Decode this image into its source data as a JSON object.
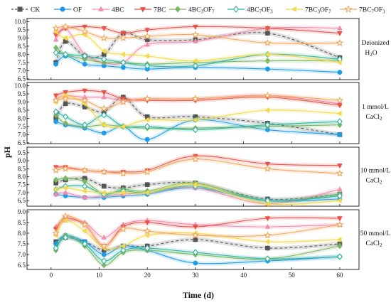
{
  "chart_data": {
    "type": "line",
    "xlabel": "Time (d)",
    "ylabel": "pH",
    "x_ticks": [
      0,
      10,
      20,
      30,
      40,
      50,
      60
    ],
    "xlim": [
      -5,
      64
    ],
    "x": [
      1,
      3,
      7,
      11,
      15,
      20,
      30,
      45,
      60
    ],
    "legend": {
      "placement": "top",
      "entries": [
        {
          "text": "CK",
          "series_key": "CK"
        },
        {
          "text": "OF",
          "series_key": "OF"
        },
        {
          "text": "4BC",
          "series_key": "4BC"
        },
        {
          "text": "7BC",
          "series_key": "7BC"
        },
        {
          "text": "4BC",
          "sub1": "3",
          "mid": "OF",
          "sub2": "7",
          "series_key": "4BC3OF7"
        },
        {
          "text": "4BC",
          "sub1": "7",
          "mid": "OF",
          "sub2": "3",
          "series_key": "4BC7OF3"
        },
        {
          "text": "7BC",
          "sub1": "3",
          "mid": "OF",
          "sub2": "7",
          "series_key": "7BC3OF7"
        },
        {
          "text": "7BC",
          "sub1": "7",
          "mid": "OF",
          "sub2": "3",
          "series_key": "7BC7OF3"
        }
      ]
    },
    "series_styles": [
      {
        "key": "CK",
        "color": "#555555",
        "marker": "square",
        "dashed": true
      },
      {
        "key": "OF",
        "color": "#1E9BE8",
        "marker": "circle",
        "dashed": false
      },
      {
        "key": "4BC",
        "color": "#F28CAE",
        "marker": "triangle-up",
        "dashed": false
      },
      {
        "key": "7BC",
        "color": "#E8524A",
        "marker": "triangle-down",
        "dashed": false
      },
      {
        "key": "4BC3OF7",
        "color": "#7BB661",
        "marker": "diamond",
        "dashed": false
      },
      {
        "key": "4BC7OF3",
        "color": "#2FB3A0",
        "marker": "diamond-open",
        "dashed": false
      },
      {
        "key": "7BC3OF7",
        "color": "#F2D94E",
        "marker": "triangle-left",
        "dashed": false
      },
      {
        "key": "7BC7OF3",
        "color": "#F0A860",
        "marker": "star-open",
        "dashed": false
      }
    ],
    "panels": [
      {
        "label_lines": [
          "Deionized",
          "H",
          "2",
          "O"
        ],
        "label_type": "h2o",
        "ylim": [
          6.45,
          10.2
        ],
        "yticks": [
          "6.5",
          "7.0",
          "7.5",
          "8.0",
          "8.5",
          "9.0",
          "9.5",
          "10.0"
        ],
        "series": [
          {
            "key": "CK",
            "values": [
              7.5,
              8.8,
              7.9,
              8.0,
              9.3,
              8.9,
              8.9,
              9.3,
              7.8
            ]
          },
          {
            "key": "OF",
            "values": [
              7.4,
              7.9,
              7.4,
              7.3,
              7.2,
              7.1,
              7.2,
              7.1,
              6.9
            ]
          },
          {
            "key": "4BC",
            "values": [
              8.9,
              9.6,
              8.0,
              7.5,
              7.5,
              8.6,
              8.8,
              9.6,
              9.6
            ]
          },
          {
            "key": "7BC",
            "values": [
              9.2,
              9.6,
              9.7,
              9.6,
              9.3,
              9.5,
              9.7,
              9.6,
              9.3
            ]
          },
          {
            "key": "4BC3OF7",
            "values": [
              8.4,
              8.0,
              7.7,
              7.5,
              7.5,
              7.4,
              7.5,
              7.6,
              7.6
            ]
          },
          {
            "key": "4BC7OF3",
            "values": [
              8.1,
              8.0,
              7.9,
              7.7,
              7.5,
              7.3,
              7.3,
              8.0,
              7.7
            ]
          },
          {
            "key": "7BC3OF7",
            "values": [
              9.4,
              9.0,
              9.2,
              8.2,
              8.0,
              7.9,
              7.6,
              8.0,
              7.5
            ]
          },
          {
            "key": "7BC7OF3",
            "values": [
              9.6,
              9.7,
              9.4,
              9.0,
              9.0,
              9.1,
              9.2,
              8.7,
              8.7
            ]
          }
        ]
      },
      {
        "label_lines": [
          "1 mmol/L",
          "CaCl",
          "2"
        ],
        "label_type": "cacl2",
        "ylim": [
          6.45,
          10.2
        ],
        "yticks": [
          "6.5",
          "7.0",
          "7.5",
          "8.0",
          "8.5",
          "9.0",
          "9.5",
          "10.0"
        ],
        "series": [
          {
            "key": "CK",
            "values": [
              8.0,
              8.9,
              8.7,
              8.4,
              9.3,
              8.1,
              8.1,
              7.7,
              7.0
            ]
          },
          {
            "key": "OF",
            "values": [
              7.8,
              7.6,
              7.4,
              7.1,
              7.5,
              6.7,
              7.9,
              7.3,
              7.0
            ]
          },
          {
            "key": "4BC",
            "values": [
              9.2,
              9.4,
              9.3,
              9.3,
              9.1,
              9.2,
              9.2,
              9.4,
              8.9
            ]
          },
          {
            "key": "7BC",
            "values": [
              9.4,
              9.6,
              9.7,
              9.6,
              9.2,
              9.1,
              9.1,
              9.3,
              8.8
            ]
          },
          {
            "key": "4BC3OF7",
            "values": [
              8.2,
              7.7,
              7.5,
              7.6,
              7.5,
              7.4,
              7.4,
              7.5,
              7.6
            ]
          },
          {
            "key": "4BC7OF3",
            "values": [
              8.4,
              8.1,
              7.6,
              8.2,
              7.5,
              7.5,
              7.3,
              7.6,
              7.8
            ]
          },
          {
            "key": "7BC3OF7",
            "values": [
              9.0,
              9.4,
              8.9,
              7.6,
              7.5,
              7.9,
              7.9,
              8.5,
              8.3
            ]
          },
          {
            "key": "7BC7OF3",
            "values": [
              9.1,
              9.2,
              9.1,
              8.6,
              9.0,
              9.2,
              9.2,
              9.4,
              9.1
            ]
          }
        ]
      },
      {
        "label_lines": [
          "10 mmol/L",
          "CaCl",
          "2"
        ],
        "label_type": "cacl2",
        "ylim": [
          6.15,
          9.85
        ],
        "yticks": [
          "6.5",
          "7.0",
          "7.5",
          "8.0",
          "8.5",
          "9.0",
          "9.5"
        ],
        "series": [
          {
            "key": "CK",
            "values": [
              7.6,
              7.8,
              7.9,
              7.4,
              7.3,
              7.5,
              7.6,
              6.6,
              6.9
            ]
          },
          {
            "key": "OF",
            "values": [
              6.9,
              6.8,
              6.7,
              6.7,
              6.8,
              6.9,
              7.3,
              6.5,
              6.6
            ]
          },
          {
            "key": "4BC",
            "values": [
              6.9,
              7.0,
              6.7,
              6.8,
              6.9,
              7.0,
              7.3,
              6.3,
              7.2
            ]
          },
          {
            "key": "7BC",
            "values": [
              8.6,
              8.6,
              8.4,
              8.3,
              8.3,
              8.4,
              9.3,
              8.8,
              8.7
            ]
          },
          {
            "key": "4BC3OF7",
            "values": [
              7.8,
              7.9,
              7.7,
              6.9,
              7.2,
              7.1,
              7.6,
              6.5,
              6.9
            ]
          },
          {
            "key": "4BC7OF3",
            "values": [
              7.2,
              7.4,
              7.4,
              6.9,
              7.1,
              7.0,
              7.4,
              6.5,
              6.8
            ]
          },
          {
            "key": "7BC3OF7",
            "values": [
              7.2,
              7.3,
              7.1,
              7.0,
              7.0,
              7.0,
              7.5,
              6.3,
              6.5
            ]
          },
          {
            "key": "7BC7OF3",
            "values": [
              8.4,
              8.5,
              8.4,
              8.3,
              8.2,
              8.3,
              9.1,
              8.5,
              8.2
            ]
          }
        ]
      },
      {
        "label_lines": [
          "50 mmol/L",
          "CaCl",
          "2"
        ],
        "label_type": "cacl2",
        "ylim": [
          6.3,
          9.1
        ],
        "yticks": [
          "6.5",
          "7.0",
          "7.5",
          "8.0",
          "8.5",
          "9.0"
        ],
        "series": [
          {
            "key": "CK",
            "values": [
              7.6,
              7.8,
              7.6,
              7.2,
              7.4,
              7.4,
              7.7,
              7.3,
              7.5
            ]
          },
          {
            "key": "OF",
            "values": [
              7.5,
              7.9,
              7.6,
              7.0,
              7.4,
              7.2,
              6.6,
              6.7,
              6.9
            ]
          },
          {
            "key": "4BC",
            "values": [
              8.3,
              8.6,
              8.5,
              7.8,
              8.4,
              8.6,
              8.4,
              8.3,
              8.4
            ]
          },
          {
            "key": "7BC",
            "values": [
              8.2,
              8.7,
              8.4,
              7.4,
              8.3,
              8.5,
              8.3,
              8.7,
              8.7
            ]
          },
          {
            "key": "4BC3OF7",
            "values": [
              7.2,
              7.9,
              7.4,
              6.5,
              7.1,
              7.2,
              7.0,
              6.8,
              7.4
            ]
          },
          {
            "key": "4BC7OF3",
            "values": [
              7.3,
              7.8,
              7.5,
              6.7,
              7.2,
              7.3,
              7.1,
              6.8,
              6.9
            ]
          },
          {
            "key": "7BC3OF7",
            "values": [
              7.9,
              8.6,
              8.1,
              7.3,
              7.4,
              7.9,
              8.0,
              7.6,
              7.7
            ]
          },
          {
            "key": "7BC7OF3",
            "values": [
              8.0,
              8.8,
              8.4,
              7.4,
              8.2,
              8.1,
              7.9,
              7.9,
              8.4
            ]
          }
        ]
      }
    ]
  }
}
